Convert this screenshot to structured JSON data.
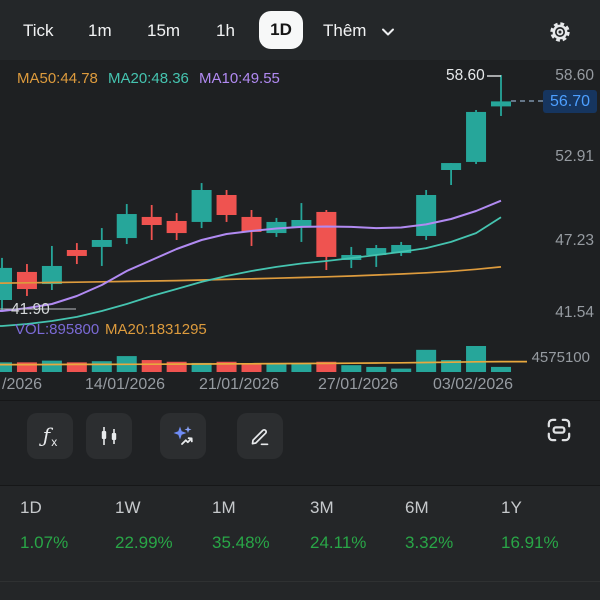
{
  "topbar": {
    "tabs": [
      {
        "label": "Tick",
        "active": false
      },
      {
        "label": "1m",
        "active": false
      },
      {
        "label": "15m",
        "active": false
      },
      {
        "label": "1h",
        "active": false
      },
      {
        "label": "1D",
        "active": true
      }
    ],
    "more_label": "Thêm"
  },
  "indicators": {
    "ma50_text": "MA50:44.78",
    "ma20_text": "MA20:48.36",
    "ma10_text": "MA10:49.55",
    "vol_text": "VOL:895800",
    "vol_ma20_text": "MA20:1831295"
  },
  "axis": {
    "price_ticks": [
      "58.60",
      "52.91",
      "47.23",
      "41.54"
    ],
    "current_price": "56.70",
    "high_marker": "58.60",
    "left_price_line": "41.90",
    "volume_tick": "4575100"
  },
  "dates": [
    "/2026",
    "14/01/2026",
    "21/01/2026",
    "27/01/2026",
    "03/02/2026"
  ],
  "toolbar": {
    "fx_f": "ƒ",
    "fx_sub": "x"
  },
  "stats": [
    {
      "label": "1D",
      "value": "1.07%"
    },
    {
      "label": "1W",
      "value": "22.99%"
    },
    {
      "label": "1M",
      "value": "35.48%"
    },
    {
      "label": "3M",
      "value": "24.11%"
    },
    {
      "label": "6M",
      "value": "3.32%"
    },
    {
      "label": "1Y",
      "value": "16.91%"
    }
  ],
  "colors": {
    "up": "#26a69a",
    "down": "#ef5350",
    "ma10": "#b18af2",
    "ma20": "#45c4b0",
    "ma50": "#dd9b3d",
    "vol_ma": "#e8a83e",
    "current_price_blue": "#4d9fff",
    "stat_green": "#29a647"
  },
  "chart_data": {
    "type": "candlestick",
    "title": "Daily price chart with MA10/MA20/MA50 and volume",
    "x_axis_labels": [
      "/2026",
      "14/01/2026",
      "21/01/2026",
      "27/01/2026",
      "03/02/2026"
    ],
    "price_axis_ticks": [
      58.6,
      56.7,
      52.91,
      47.23,
      41.54
    ],
    "current_price": 56.7,
    "day_high": 58.6,
    "left_price_line": 41.9,
    "volume_axis_max": 4575100,
    "indicator_values": {
      "ma50": 44.78,
      "ma20": 48.36,
      "ma10": 49.55,
      "vol": 895800,
      "vol_ma20": 1831295
    },
    "candles": [
      {
        "o": 42.4,
        "h": 45.43,
        "l": 41.68,
        "c": 44.71,
        "v": 1700000
      },
      {
        "o": 44.42,
        "h": 44.99,
        "l": 42.69,
        "c": 43.19,
        "v": 1700000
      },
      {
        "o": 43.55,
        "h": 46.29,
        "l": 43.12,
        "c": 44.85,
        "v": 2000000
      },
      {
        "o": 46.0,
        "h": 46.5,
        "l": 44.99,
        "c": 45.57,
        "v": 1700000
      },
      {
        "o": 46.22,
        "h": 47.58,
        "l": 44.85,
        "c": 46.72,
        "v": 1900000
      },
      {
        "o": 46.86,
        "h": 49.31,
        "l": 46.43,
        "c": 48.59,
        "v": 2800000
      },
      {
        "o": 48.38,
        "h": 49.24,
        "l": 46.72,
        "c": 47.8,
        "v": 2100000
      },
      {
        "o": 48.09,
        "h": 48.66,
        "l": 46.72,
        "c": 47.22,
        "v": 1800000
      },
      {
        "o": 48.02,
        "h": 50.82,
        "l": 47.58,
        "c": 50.32,
        "v": 1600000
      },
      {
        "o": 49.96,
        "h": 50.32,
        "l": 48.02,
        "c": 48.52,
        "v": 1800000
      },
      {
        "o": 48.38,
        "h": 48.88,
        "l": 46.29,
        "c": 47.3,
        "v": 1500000
      },
      {
        "o": 47.22,
        "h": 48.31,
        "l": 46.94,
        "c": 48.02,
        "v": 1400000
      },
      {
        "o": 47.66,
        "h": 49.38,
        "l": 46.58,
        "c": 48.16,
        "v": 1500000
      },
      {
        "o": 48.74,
        "h": 48.88,
        "l": 44.56,
        "c": 45.5,
        "v": 1800000
      },
      {
        "o": 45.28,
        "h": 46.22,
        "l": 44.7,
        "c": 45.64,
        "v": 1200000
      },
      {
        "o": 45.64,
        "h": 46.36,
        "l": 44.78,
        "c": 46.14,
        "v": 900000
      },
      {
        "o": 45.78,
        "h": 46.58,
        "l": 45.57,
        "c": 46.36,
        "v": 600000
      },
      {
        "o": 47.01,
        "h": 50.32,
        "l": 46.72,
        "c": 49.96,
        "v": 3900000
      },
      {
        "o": 51.76,
        "h": 52.26,
        "l": 50.68,
        "c": 52.26,
        "v": 2100000
      },
      {
        "o": 52.34,
        "h": 56.08,
        "l": 52.19,
        "c": 55.94,
        "v": 4575100
      },
      {
        "o": 56.34,
        "h": 58.6,
        "l": 55.65,
        "c": 56.7,
        "v": 895800
      }
    ],
    "ma10": [
      41.61,
      41.82,
      42.11,
      42.69,
      43.48,
      44.49,
      45.28,
      46.07,
      46.72,
      47.15,
      47.37,
      47.55,
      47.66,
      47.69,
      47.66,
      47.58,
      47.62,
      47.84,
      48.23,
      48.81,
      49.55
    ],
    "ma20": [
      40.53,
      40.67,
      40.89,
      41.18,
      41.61,
      42.11,
      42.69,
      43.19,
      43.7,
      44.13,
      44.49,
      44.78,
      45.03,
      45.21,
      45.42,
      45.64,
      45.86,
      46.14,
      46.58,
      47.22,
      48.36
    ],
    "ma50": [
      43.62,
      43.64,
      43.66,
      43.68,
      43.71,
      43.74,
      43.77,
      43.8,
      43.84,
      43.88,
      43.93,
      43.97,
      44.02,
      44.07,
      44.13,
      44.2,
      44.27,
      44.36,
      44.47,
      44.61,
      44.78
    ],
    "vol_ma20": [
      1300000,
      1310000,
      1320000,
      1330000,
      1345000,
      1360000,
      1375000,
      1390000,
      1410000,
      1430000,
      1450000,
      1470000,
      1495000,
      1520000,
      1545000,
      1575000,
      1615000,
      1670000,
      1730000,
      1800000,
      1831295
    ]
  }
}
